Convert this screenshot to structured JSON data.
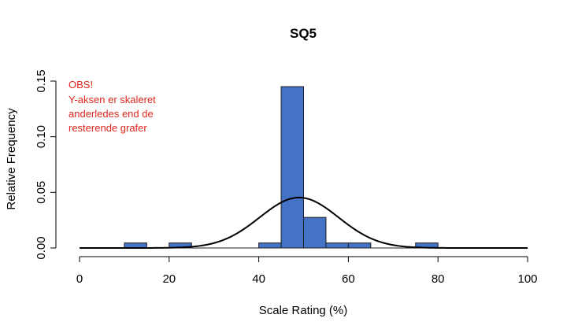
{
  "chart_data": {
    "type": "bar",
    "title": "SQ5",
    "xlabel": "Scale Rating (%)",
    "ylabel": "Relative Frequency",
    "xlim": [
      0,
      100
    ],
    "ylim": [
      0,
      0.15
    ],
    "x_ticks": [
      0,
      20,
      40,
      60,
      80,
      100
    ],
    "y_ticks": [
      0.0,
      0.05,
      0.1,
      0.15
    ],
    "y_tick_labels": [
      "0.00",
      "0.05",
      "0.10",
      "0.15"
    ],
    "bin_width": 5,
    "bins": [
      {
        "start": 0,
        "end": 5,
        "value": 0
      },
      {
        "start": 5,
        "end": 10,
        "value": 0
      },
      {
        "start": 10,
        "end": 15,
        "value": 0.0045
      },
      {
        "start": 15,
        "end": 20,
        "value": 0
      },
      {
        "start": 20,
        "end": 25,
        "value": 0.0045
      },
      {
        "start": 25,
        "end": 30,
        "value": 0
      },
      {
        "start": 30,
        "end": 35,
        "value": 0
      },
      {
        "start": 35,
        "end": 40,
        "value": 0
      },
      {
        "start": 40,
        "end": 45,
        "value": 0.0045
      },
      {
        "start": 45,
        "end": 50,
        "value": 0.145
      },
      {
        "start": 50,
        "end": 55,
        "value": 0.0275
      },
      {
        "start": 55,
        "end": 60,
        "value": 0.0045
      },
      {
        "start": 60,
        "end": 65,
        "value": 0.0045
      },
      {
        "start": 65,
        "end": 70,
        "value": 0
      },
      {
        "start": 70,
        "end": 75,
        "value": 0
      },
      {
        "start": 75,
        "end": 80,
        "value": 0.0045
      },
      {
        "start": 80,
        "end": 85,
        "value": 0
      },
      {
        "start": 85,
        "end": 90,
        "value": 0
      },
      {
        "start": 90,
        "end": 95,
        "value": 0
      },
      {
        "start": 95,
        "end": 100,
        "value": 0
      }
    ],
    "density_curve": {
      "type": "normal",
      "mean": 49,
      "sd": 8.8
    },
    "bar_color": "#4472c4",
    "bar_edge_color": "#1f1f1f",
    "curve_color": "#000000",
    "grid": false,
    "annotation": {
      "lines": [
        "OBS!",
        "Y-aksen er skaleret",
        "anderledes end de",
        "resterende grafer"
      ],
      "color": "#e0261c"
    }
  }
}
